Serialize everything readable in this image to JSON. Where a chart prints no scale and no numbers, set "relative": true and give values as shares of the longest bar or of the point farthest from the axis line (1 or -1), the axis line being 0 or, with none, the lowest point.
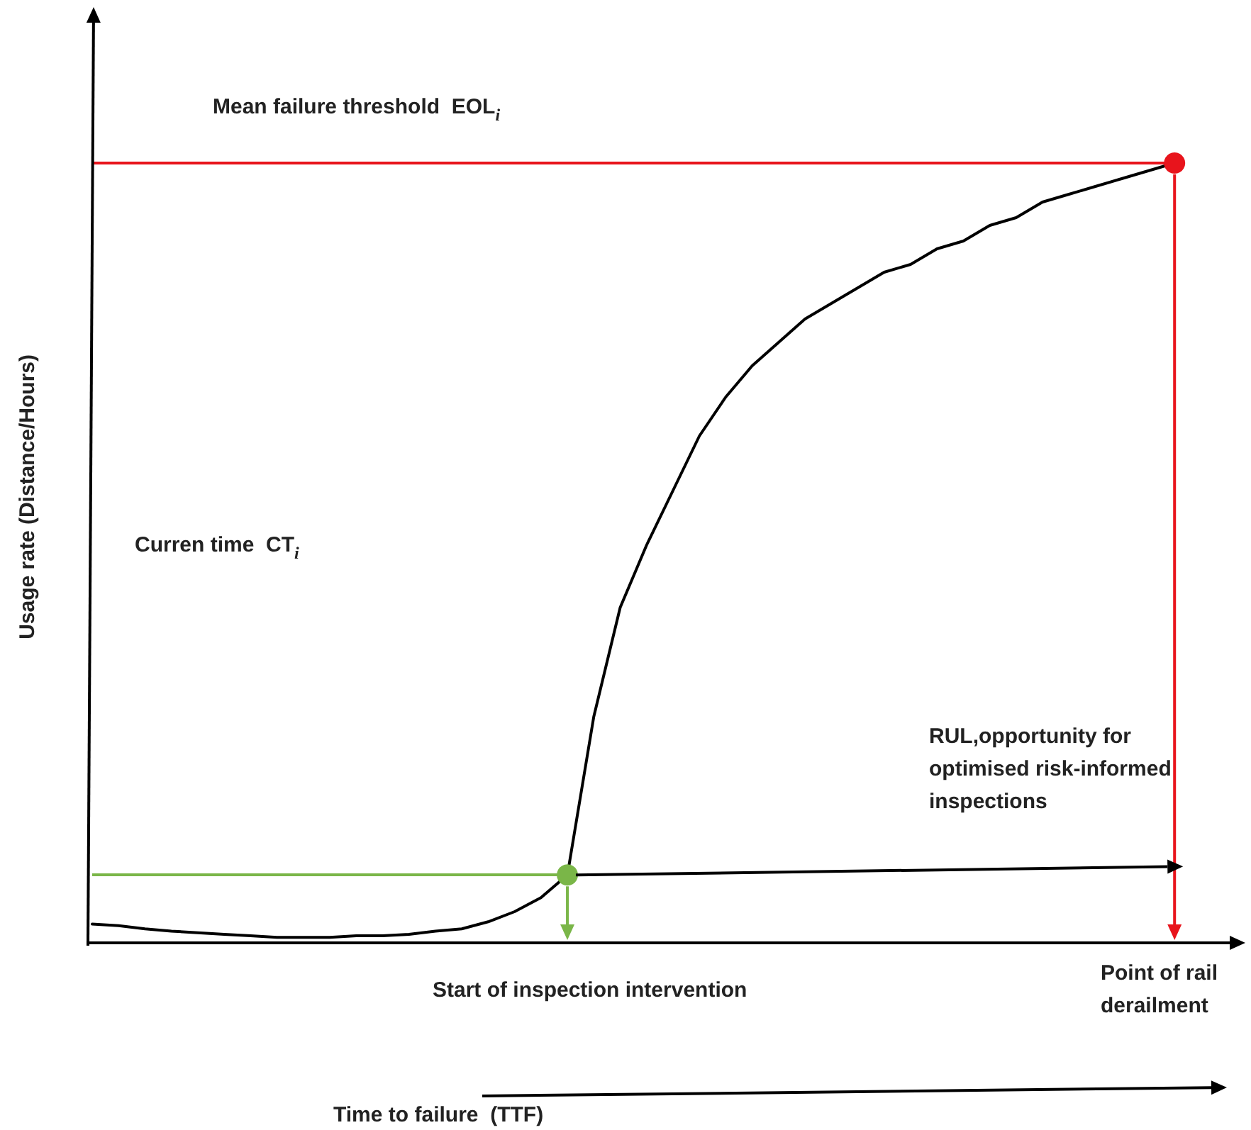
{
  "chart_data": {
    "type": "line",
    "relative": true,
    "ylabel": "Usage rate (Distance/Hours)",
    "categories": [
      null,
      null,
      null,
      null,
      null,
      null,
      null,
      null,
      null,
      null,
      null,
      null,
      null,
      null,
      null,
      null,
      null,
      null,
      null,
      null,
      null,
      null,
      null,
      null,
      null,
      null,
      null,
      null,
      null,
      null,
      null,
      null,
      null,
      null,
      null,
      null,
      null,
      null,
      null,
      null,
      null,
      null
    ],
    "series": [
      {
        "color": "#000000",
        "values": [
          0.024,
          0.022,
          0.018,
          0.015,
          0.013,
          0.011,
          0.009,
          0.007,
          0.007,
          0.007,
          0.009,
          0.009,
          0.011,
          0.015,
          0.018,
          0.027,
          0.04,
          0.058,
          0.087,
          0.29,
          0.43,
          0.51,
          0.58,
          0.65,
          0.7,
          0.74,
          0.77,
          0.8,
          0.82,
          0.84,
          0.86,
          0.87,
          0.89,
          0.9,
          0.92,
          0.93,
          0.95,
          0.96,
          0.97,
          0.98,
          0.99,
          1
        ]
      }
    ],
    "ref_lines": [
      {
        "axis": "y",
        "value": 1,
        "label": "Mean failure threshold  EOL$_{i}$",
        "color": "#e8141c"
      },
      {
        "axis": "y",
        "value": 0.087,
        "color": "#7ab648"
      }
    ],
    "annotations": [
      "Curren time  CT$_{i}$",
      "RUL,opportunity for\noptimised risk-informed\ninspections",
      "Start of inspection intervention",
      "Point of rail\nderailment",
      "Time to failure  (TTF)"
    ],
    "grid": false,
    "marker": "none",
    "line_style": "solid"
  }
}
